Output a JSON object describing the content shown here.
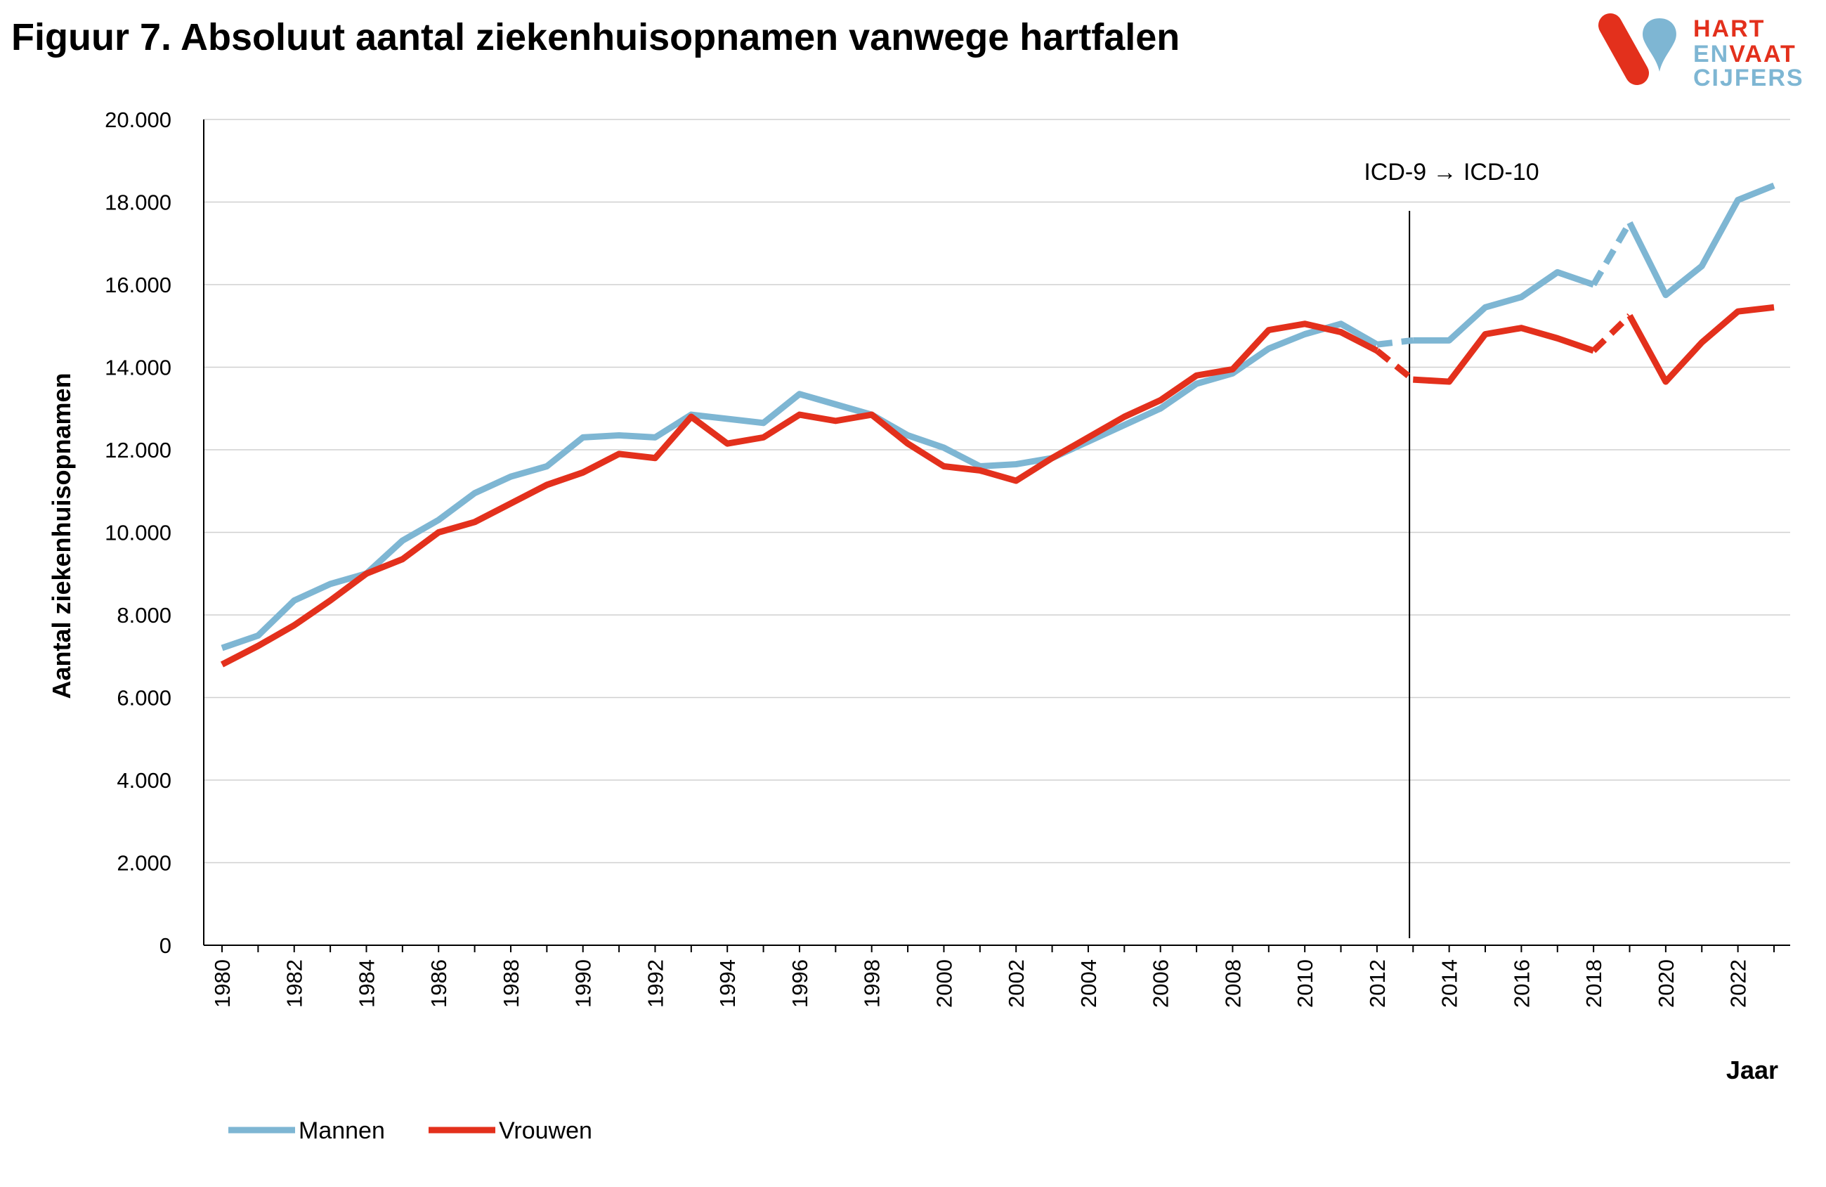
{
  "title": "Figuur 7. Absoluut aantal ziekenhuisopnamen vanwege hartfalen",
  "logo": {
    "line1": "HART",
    "line2a": "EN",
    "line2b": "VAAT",
    "line3": "CIJFERS",
    "colors": {
      "red": "#e3301c",
      "blue": "#7eb6d3"
    }
  },
  "chart_data": {
    "type": "line",
    "xlabel": "Jaar",
    "ylabel": "Aantal ziekenhuisopnamen",
    "ylim": [
      0,
      20000
    ],
    "yticks": [
      0,
      2000,
      4000,
      6000,
      8000,
      10000,
      12000,
      14000,
      16000,
      18000,
      20000
    ],
    "ytick_labels": [
      "0",
      "2.000",
      "4.000",
      "6.000",
      "8.000",
      "10.000",
      "12.000",
      "14.000",
      "16.000",
      "18.000",
      "20.000"
    ],
    "xlim": [
      1980,
      2023
    ],
    "xtick_labels": [
      "1980",
      "1982",
      "1984",
      "1986",
      "1988",
      "1990",
      "1992",
      "1994",
      "1996",
      "1998",
      "2000",
      "2002",
      "2004",
      "2006",
      "2008",
      "2010",
      "2012",
      "2014",
      "2016",
      "2018",
      "2020",
      "2022"
    ],
    "grid": "horizontal",
    "legend_position": "bottom-left",
    "annotation": {
      "text": "ICD-9 → ICD-10",
      "x": 2012.9
    },
    "x": [
      1980,
      1981,
      1982,
      1983,
      1984,
      1985,
      1986,
      1987,
      1988,
      1989,
      1990,
      1991,
      1992,
      1993,
      1994,
      1995,
      1996,
      1997,
      1998,
      1999,
      2000,
      2001,
      2002,
      2003,
      2004,
      2005,
      2006,
      2007,
      2008,
      2009,
      2010,
      2011,
      2012,
      2013,
      2014,
      2015,
      2016,
      2017,
      2018,
      2019,
      2020,
      2021,
      2022,
      2023
    ],
    "dashed_segments": [
      [
        2012,
        2013
      ],
      [
        2018,
        2019
      ]
    ],
    "series": [
      {
        "name": "Mannen",
        "color": "#7eb6d3",
        "values": [
          7200,
          7500,
          8350,
          8750,
          9000,
          9800,
          10300,
          10950,
          11350,
          11600,
          12300,
          12350,
          12300,
          12850,
          12750,
          12650,
          13350,
          13100,
          12850,
          12350,
          12050,
          11600,
          11650,
          11800,
          12200,
          12600,
          13000,
          13600,
          13850,
          14450,
          14800,
          15050,
          14550,
          14650,
          14650,
          15450,
          15700,
          16300,
          16000,
          17500,
          15750,
          16450,
          18050,
          18400
        ]
      },
      {
        "name": "Vrouwen",
        "color": "#e3301c",
        "values": [
          6800,
          7250,
          7750,
          8350,
          9000,
          9350,
          10000,
          10250,
          10700,
          11150,
          11450,
          11900,
          11800,
          12800,
          12150,
          12300,
          12850,
          12700,
          12850,
          12150,
          11600,
          11500,
          11250,
          11800,
          12300,
          12800,
          13200,
          13800,
          13950,
          14900,
          15050,
          14850,
          14400,
          13700,
          13650,
          14800,
          14950,
          14700,
          14400,
          15250,
          13650,
          14600,
          15350,
          15450
        ]
      }
    ]
  }
}
